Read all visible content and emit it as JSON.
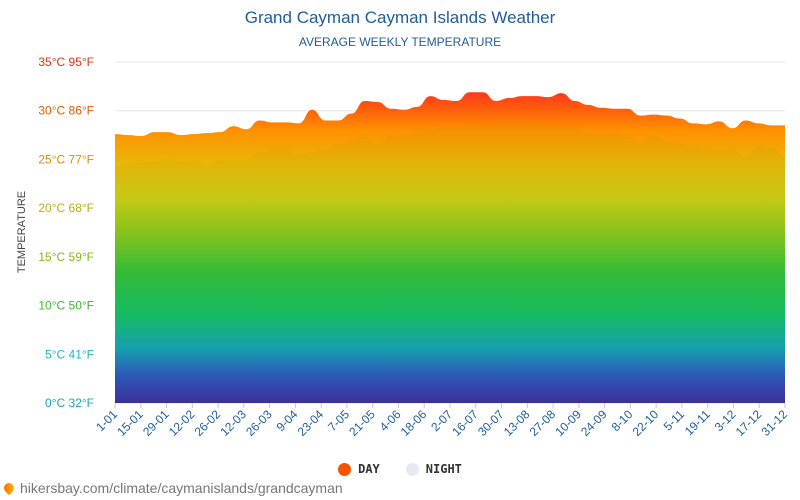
{
  "title": "Grand Cayman Cayman Islands Weather",
  "subtitle": "AVERAGE WEEKLY TEMPERATURE",
  "legend": {
    "day": "DAY",
    "night": "NIGHT"
  },
  "watermark": "hikersbay.com/climate/caymanislands/grandcayman",
  "colors": {
    "day_dot": "#f45400",
    "night_dot": "#e4eaf0",
    "title": "#1f5d9a"
  },
  "chart_data": {
    "type": "area",
    "ylabel": "TEMPERATURE",
    "ylim": [
      0,
      35
    ],
    "grid": true,
    "legend_position": "bottom",
    "y_ticks": [
      {
        "value": 0,
        "label": "0°C 32°F",
        "color": "#1aa3c8"
      },
      {
        "value": 5,
        "label": "5°C 41°F",
        "color": "#1ab8c0"
      },
      {
        "value": 10,
        "label": "10°C 50°F",
        "color": "#3cb830"
      },
      {
        "value": 15,
        "label": "15°C 59°F",
        "color": "#86b818"
      },
      {
        "value": 20,
        "label": "20°C 68°F",
        "color": "#b8b010"
      },
      {
        "value": 25,
        "label": "25°C 77°F",
        "color": "#e08a00"
      },
      {
        "value": 30,
        "label": "30°C 86°F",
        "color": "#e85a00"
      },
      {
        "value": 35,
        "label": "35°C 95°F",
        "color": "#e83010"
      }
    ],
    "x_ticks": [
      "1-01",
      "15-01",
      "29-01",
      "12-02",
      "26-02",
      "12-03",
      "26-03",
      "9-04",
      "23-04",
      "7-05",
      "21-05",
      "4-06",
      "18-06",
      "2-07",
      "16-07",
      "30-07",
      "13-08",
      "27-08",
      "10-09",
      "24-09",
      "8-10",
      "22-10",
      "5-11",
      "19-11",
      "3-12",
      "17-12",
      "31-12"
    ],
    "series": [
      {
        "name": "DAY",
        "values": [
          27.6,
          27.5,
          27.4,
          27.8,
          27.8,
          27.5,
          27.6,
          27.7,
          27.8,
          28.4,
          28.1,
          29.0,
          28.8,
          28.8,
          28.7,
          30.1,
          29.0,
          29.0,
          29.7,
          31.0,
          30.9,
          30.2,
          30.1,
          30.4,
          31.5,
          31.1,
          31.0,
          31.9,
          31.9,
          31.0,
          31.3,
          31.5,
          31.5,
          31.4,
          31.8,
          31.0,
          30.6,
          30.3,
          30.2,
          30.2,
          29.5,
          29.6,
          29.5,
          29.2,
          28.7,
          28.6,
          28.9,
          28.2,
          29.0,
          28.7,
          28.5,
          28.5
        ]
      },
      {
        "name": "NIGHT",
        "values": [
          24.3,
          24.5,
          24.7,
          24.8,
          25.0,
          24.8,
          24.9,
          24.4,
          24.9,
          24.9,
          24.9,
          25.7,
          26.0,
          26.0,
          25.5,
          25.8,
          26.1,
          26.5,
          26.9,
          27.3,
          26.6,
          27.5,
          27.4,
          28.2,
          28.0,
          28.4,
          28.3,
          28.5,
          28.6,
          28.7,
          28.7,
          28.7,
          28.6,
          28.6,
          28.7,
          28.6,
          27.7,
          27.5,
          27.8,
          27.3,
          26.8,
          27.4,
          26.8,
          26.6,
          26.3,
          26.0,
          25.9,
          26.0,
          25.2,
          26.5,
          26.2,
          25.3
        ]
      }
    ]
  }
}
